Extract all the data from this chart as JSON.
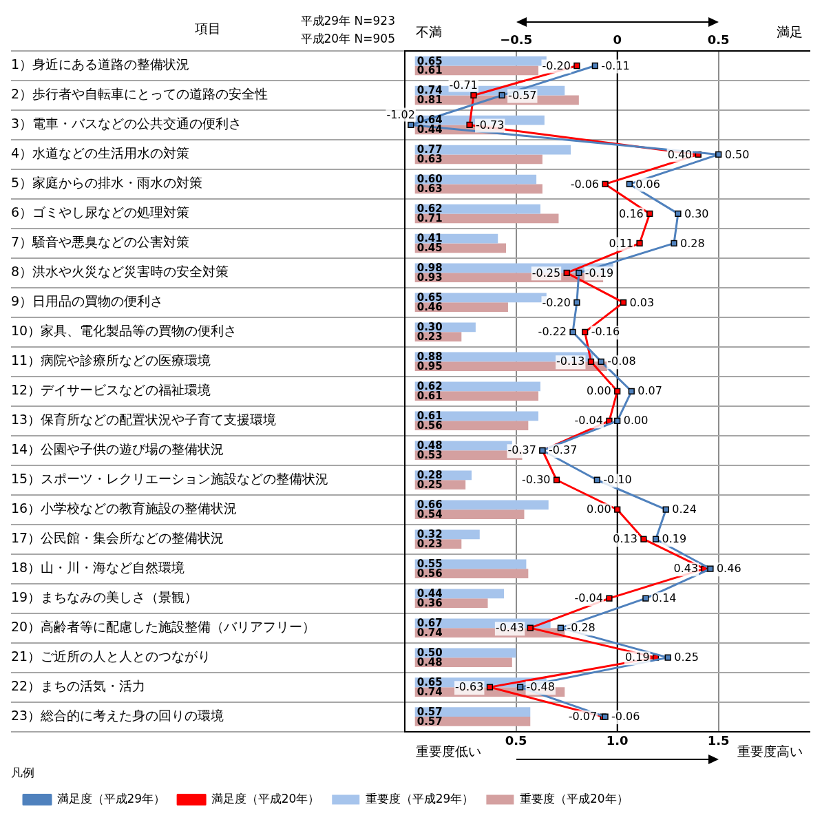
{
  "chart_data": {
    "type": "bar",
    "orientation": "horizontal",
    "ylabel": "項目",
    "legend_title": "凡例",
    "categories": [
      "1）身近にある道路の整備状況",
      "2）歩行者や自転車にとっての道路の安全性",
      "3）電車・バスなどの公共交通の便利さ",
      "4）水道などの生活用水の対策",
      "5）家庭からの排水・雨水の対策",
      "6）ゴミやし尿などの処理対策",
      "7）騒音や悪臭などの公害対策",
      "8）洪水や火災など災害時の安全対策",
      "9）日用品の買物の便利さ",
      "10）家具、電化製品等の買物の便利さ",
      "11）病院や診療所などの医療環境",
      "12）デイサービスなどの福祉環境",
      "13）保育所などの配置状況や子育て支援環境",
      "14）公園や子供の遊び場の整備状況",
      "15）スポーツ・レクリエーション施設などの整備状況",
      "16）小学校などの教育施設の整備状況",
      "17）公民館・集会所などの整備状況",
      "18）山・川・海など自然環境",
      "19）まちなみの美しさ（景観）",
      "20）高齢者等に配慮した施設整備（バリアフリー）",
      "21）ご近所の人と人とのつながり",
      "22）まちの活気・活力",
      "23）総合的に考えた身の回りの環境"
    ],
    "series": [
      {
        "name": "満足度（平成29年）",
        "type": "line",
        "axis": "x2",
        "color": "#4f81bd",
        "values": [
          -0.11,
          -0.57,
          -1.02,
          0.5,
          0.06,
          0.3,
          0.28,
          -0.19,
          -0.2,
          -0.22,
          -0.08,
          0.07,
          0,
          -0.37,
          -0.1,
          0.24,
          0.19,
          0.46,
          0.14,
          -0.28,
          0.25,
          -0.48,
          -0.06
        ],
        "value_labels": [
          "-0.11",
          "-0.57",
          "-1.02",
          "0.50",
          "0.06",
          "0.30",
          "0.28",
          "-0.19",
          "-0.20",
          "-0.22",
          "-0.08",
          "0.07",
          "0.00",
          "-0.37",
          "-0.10",
          "0.24",
          "0.19",
          "0.46",
          "0.14",
          "-0.28",
          "0.25",
          "-0.48",
          "-0.06"
        ]
      },
      {
        "name": "満足度（平成20年）",
        "type": "line",
        "axis": "x2",
        "color": "#ff0000",
        "values": [
          -0.2,
          -0.71,
          -0.73,
          0.4,
          -0.06,
          0.16,
          0.11,
          -0.25,
          0.03,
          -0.16,
          -0.13,
          0,
          -0.04,
          -0.37,
          -0.3,
          0,
          0.13,
          0.43,
          -0.04,
          -0.43,
          0.19,
          -0.63,
          -0.07
        ],
        "value_labels": [
          "-0.20",
          "-0.71",
          "-0.73",
          "0.40",
          "-0.06",
          "0.16",
          "0.11",
          "-0.25",
          "0.03",
          "-0.16",
          "-0.13",
          "0.00",
          "-0.04",
          "-0.37",
          "-0.30",
          "0.00",
          "0.13",
          "0.43",
          "-0.04",
          "-0.43",
          "0.19",
          "-0.63",
          "-0.07"
        ]
      },
      {
        "name": "重要度（平成29年）",
        "type": "bar",
        "color": "#a6c4ec",
        "values": [
          0.65,
          0.74,
          0.64,
          0.77,
          0.6,
          0.62,
          0.41,
          0.98,
          0.65,
          0.3,
          0.88,
          0.62,
          0.61,
          0.48,
          0.28,
          0.66,
          0.32,
          0.55,
          0.44,
          0.67,
          0.5,
          0.65,
          0.57
        ],
        "value_labels": [
          "0.65",
          "0.74",
          "0.64",
          "0.77",
          "0.60",
          "0.62",
          "0.41",
          "0.98",
          "0.65",
          "0.30",
          "0.88",
          "0.62",
          "0.61",
          "0.48",
          "0.28",
          "0.66",
          "0.32",
          "0.55",
          "0.44",
          "0.67",
          "0.50",
          "0.65",
          "0.57"
        ]
      },
      {
        "name": "重要度（平成20年）",
        "type": "bar",
        "color": "#d4a0a0",
        "values": [
          0.61,
          0.81,
          0.44,
          0.63,
          0.63,
          0.71,
          0.45,
          0.93,
          0.46,
          0.23,
          0.95,
          0.61,
          0.56,
          0.53,
          0.25,
          0.54,
          0.23,
          0.56,
          0.36,
          0.74,
          0.48,
          0.74,
          0.57
        ],
        "value_labels": [
          "0.61",
          "0.81",
          "0.44",
          "0.63",
          "0.63",
          "0.71",
          "0.45",
          "0.93",
          "0.46",
          "0.23",
          "0.95",
          "0.61",
          "0.56",
          "0.53",
          "0.25",
          "0.54",
          "0.23",
          "0.56",
          "0.36",
          "0.74",
          "0.48",
          "0.74",
          "0.57"
        ]
      }
    ],
    "xlim": [
      -0.05,
      1.95
    ],
    "xticks": [
      0.5,
      {
        "value": 1,
        "label": "1.0"
      },
      1.5
    ],
    "x2lim": [
      -1.05,
      0.95
    ],
    "x2ticks": [
      {
        "value": -0.5,
        "label": "−0.5"
      },
      0,
      0.5
    ],
    "grid": true,
    "legend": "bottom left",
    "marker": "square",
    "line_style": "solid",
    "ref_lines": [
      {
        "axis": "x2",
        "value": 0,
        "color": "#000000"
      }
    ],
    "annotations": [
      "平成29年 N=923",
      "平成20年 N=905",
      "不満",
      "満足",
      "重要度低い",
      "重要度高い"
    ]
  }
}
